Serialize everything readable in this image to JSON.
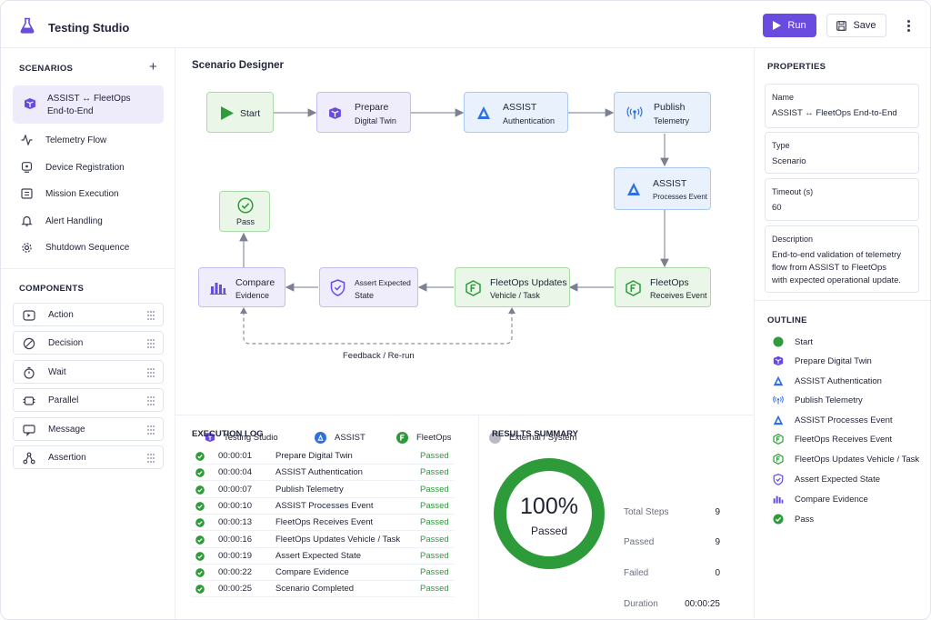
{
  "header": {
    "title": "Testing Studio",
    "run_label": "Run",
    "save_label": "Save"
  },
  "scenarios": {
    "title": "SCENARIOS",
    "active": {
      "line1": "ASSIST ↔ FleetOps",
      "line2": "End-to-End"
    },
    "items": [
      "Telemetry Flow",
      "Device Registration",
      "Mission Execution",
      "Alert Handling",
      "Shutdown Sequence"
    ]
  },
  "components": {
    "title": "COMPONENTS",
    "items": [
      "Action",
      "Decision",
      "Wait",
      "Parallel",
      "Message",
      "Assertion"
    ]
  },
  "designer": {
    "title": "Scenario Designer",
    "nodes": {
      "start": "Start",
      "prepare": {
        "l1": "Prepare",
        "l2": "Digital Twin"
      },
      "auth": {
        "l1": "ASSIST",
        "l2": "Authentication"
      },
      "publish": {
        "l1": "Publish",
        "l2": "Telemetry"
      },
      "processes": {
        "l1": "ASSIST",
        "l2": "Processes Event"
      },
      "receives": {
        "l1": "FleetOps",
        "l2": "Receives Event"
      },
      "updates": {
        "l1": "FleetOps Updates",
        "l2": "Vehicle / Task"
      },
      "assert": {
        "l1": "Assert Expected",
        "l2": "State"
      },
      "compare": {
        "l1": "Compare",
        "l2": "Evidence"
      },
      "pass": "Pass"
    },
    "feedback_label": "Feedback / Re-run",
    "legend": [
      "Testing Studio",
      "ASSIST",
      "FleetOps",
      "External / System"
    ]
  },
  "log": {
    "title": "EXECUTION LOG",
    "rows": [
      {
        "time": "00:00:01",
        "step": "Prepare Digital Twin",
        "status": "Passed"
      },
      {
        "time": "00:00:04",
        "step": "ASSIST Authentication",
        "status": "Passed"
      },
      {
        "time": "00:00:07",
        "step": "Publish Telemetry",
        "status": "Passed"
      },
      {
        "time": "00:00:10",
        "step": "ASSIST Processes Event",
        "status": "Passed"
      },
      {
        "time": "00:00:13",
        "step": "FleetOps Receives Event",
        "status": "Passed"
      },
      {
        "time": "00:00:16",
        "step": "FleetOps Updates Vehicle / Task",
        "status": "Passed"
      },
      {
        "time": "00:00:19",
        "step": "Assert Expected State",
        "status": "Passed"
      },
      {
        "time": "00:00:22",
        "step": "Compare Evidence",
        "status": "Passed"
      },
      {
        "time": "00:00:25",
        "step": "Scenario Completed",
        "status": "Passed"
      }
    ]
  },
  "results": {
    "title": "RESULTS SUMMARY",
    "percent": "100%",
    "percent_fraction": 1.0,
    "percent_label": "Passed",
    "stats": [
      {
        "label": "Total Steps",
        "value": "9"
      },
      {
        "label": "Passed",
        "value": "9"
      },
      {
        "label": "Failed",
        "value": "0"
      },
      {
        "label": "Duration",
        "value": "00:00:25"
      }
    ]
  },
  "properties": {
    "title": "PROPERTIES",
    "name": {
      "label": "Name",
      "value": "ASSIST ↔ FleetOps End-to-End"
    },
    "type": {
      "label": "Type",
      "value": "Scenario"
    },
    "timeout": {
      "label": "Timeout (s)",
      "value": "60"
    },
    "description": {
      "label": "Description",
      "lines": [
        "End-to-end validation of telemetry",
        "flow from ASSIST to FleetOps",
        "with expected operational update."
      ]
    }
  },
  "outline": {
    "title": "OUTLINE",
    "items": [
      "Start",
      "Prepare Digital Twin",
      "ASSIST Authentication",
      "Publish Telemetry",
      "ASSIST Processes Event",
      "FleetOps Receives Event",
      "FleetOps Updates Vehicle / Task",
      "Assert Expected State",
      "Compare Evidence",
      "Pass"
    ]
  },
  "colors": {
    "accent": "#6a4be0",
    "assist": "#2f6fe4",
    "fleetops": "#2e9b3a",
    "success": "#2e9b3a",
    "external": "#b8bac4"
  }
}
